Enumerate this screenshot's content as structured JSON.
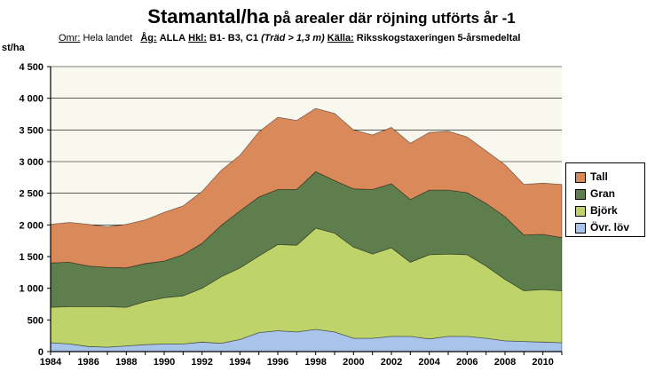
{
  "title": {
    "main": "Stamantal/ha",
    "rest": "på arealer där röjning utförts år -1"
  },
  "subtitle": {
    "omr_key": "Omr:",
    "omr_val": "Hela landet",
    "ag_key": "Åg:",
    "ag_val": "ALLA",
    "hkl_key": "Hkl:",
    "hkl_val": "B1- B3, C1",
    "hkl_note": "(Träd > 1,3 m)",
    "kalla_key": "Källa:",
    "kalla_val": "Riksskogstaxeringen 5-årsmedeltal"
  },
  "colors": {
    "plot_bg": "#f8f8ee",
    "Tall": "#d9895a",
    "Gran": "#5f7e4d",
    "Björk": "#bfd36b",
    "Övr. löv": "#a9c4eb"
  },
  "chart_data": {
    "type": "area",
    "stacked": true,
    "ylabel": "st/ha",
    "ylim": [
      0,
      4500
    ],
    "yticks": [
      0,
      500,
      1000,
      1500,
      2000,
      2500,
      3000,
      3500,
      4000,
      4500
    ],
    "ytick_labels": [
      "0",
      "500",
      "1 000",
      "1 500",
      "2 000",
      "2 500",
      "3 000",
      "3 500",
      "4 000",
      "4 500"
    ],
    "xlim": [
      1984,
      2011
    ],
    "xticks": [
      1984,
      1986,
      1988,
      1990,
      1992,
      1994,
      1996,
      1998,
      2000,
      2002,
      2004,
      2006,
      2008,
      2010
    ],
    "x": [
      1984,
      1985,
      1986,
      1987,
      1988,
      1989,
      1990,
      1991,
      1992,
      1993,
      1994,
      1995,
      1996,
      1997,
      1998,
      1999,
      2000,
      2001,
      2002,
      2003,
      2004,
      2005,
      2006,
      2007,
      2008,
      2009,
      2010,
      2011
    ],
    "grid": true,
    "legend_position": "right",
    "series": [
      {
        "name": "Övr. löv",
        "values": [
          140,
          120,
          80,
          70,
          90,
          110,
          120,
          120,
          150,
          130,
          190,
          300,
          330,
          310,
          350,
          310,
          210,
          210,
          240,
          240,
          200,
          240,
          240,
          210,
          170,
          160,
          150,
          140
        ]
      },
      {
        "name": "Björk",
        "values": [
          560,
          590,
          630,
          640,
          610,
          680,
          730,
          760,
          850,
          1050,
          1130,
          1210,
          1360,
          1370,
          1600,
          1560,
          1440,
          1330,
          1400,
          1170,
          1330,
          1300,
          1290,
          1140,
          970,
          800,
          830,
          820
        ]
      },
      {
        "name": "Gran",
        "values": [
          700,
          700,
          640,
          620,
          620,
          600,
          580,
          650,
          710,
          810,
          900,
          930,
          870,
          880,
          890,
          830,
          920,
          1020,
          1010,
          990,
          1020,
          1010,
          980,
          990,
          990,
          880,
          870,
          840
        ]
      },
      {
        "name": "Tall",
        "values": [
          610,
          630,
          660,
          640,
          690,
          690,
          770,
          770,
          820,
          870,
          880,
          1030,
          1140,
          1090,
          1000,
          1060,
          930,
          860,
          890,
          890,
          910,
          930,
          880,
          830,
          820,
          800,
          810,
          840
        ]
      }
    ],
    "legend_order": [
      "Tall",
      "Gran",
      "Björk",
      "Övr. löv"
    ]
  }
}
